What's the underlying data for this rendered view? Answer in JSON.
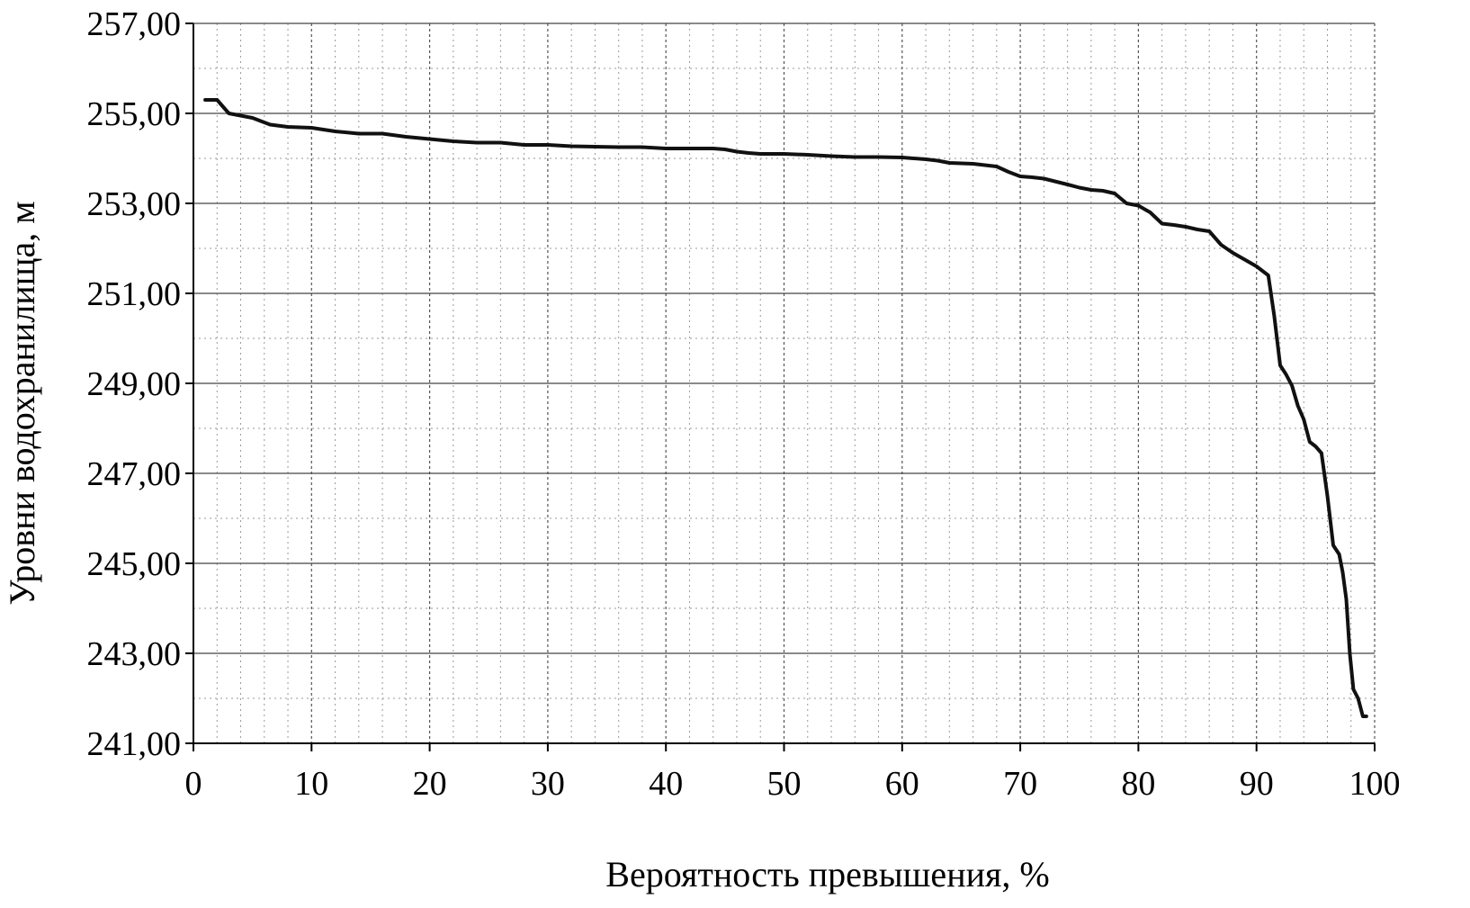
{
  "chart_data": {
    "type": "line",
    "title": "",
    "xlabel": "Вероятность превышения, %",
    "ylabel": "Уровни водохранилища, м",
    "xlim": [
      0,
      100
    ],
    "ylim": [
      241,
      257
    ],
    "x_ticks": [
      "0",
      "10",
      "20",
      "30",
      "40",
      "50",
      "60",
      "70",
      "80",
      "90",
      "100"
    ],
    "y_ticks": [
      "241,00",
      "243,00",
      "245,00",
      "247,00",
      "249,00",
      "251,00",
      "253,00",
      "255,00",
      "257,00"
    ],
    "grid": true,
    "legend": "none",
    "line_color": "#111111",
    "series": [
      {
        "x": [
          1.0,
          2.0,
          3.0,
          4.0,
          5.0,
          6.5,
          8.0,
          10.0,
          12.0,
          14.0,
          16.0,
          18.0,
          20.0,
          22.0,
          24.0,
          26.0,
          28.0,
          30.0,
          32.0,
          34.0,
          36.0,
          38.0,
          40.0,
          42.0,
          44.0,
          45.0,
          46.0,
          47.0,
          48.0,
          50.0,
          52.0,
          54.0,
          56.0,
          58.0,
          60.0,
          62.0,
          63.0,
          64.0,
          66.0,
          67.0,
          68.0,
          69.0,
          70.0,
          71.0,
          72.0,
          74.0,
          75.0,
          76.0,
          77.0,
          78.0,
          79.0,
          80.0,
          81.0,
          82.0,
          83.0,
          84.0,
          85.0,
          86.0,
          87.0,
          88.0,
          89.0,
          90.0,
          91.0,
          91.5,
          92.0,
          92.5,
          93.0,
          93.5,
          94.0,
          94.5,
          95.0,
          95.5,
          96.0,
          96.5,
          97.0,
          97.3,
          97.6,
          97.9,
          98.2,
          98.6,
          99.0,
          99.3
        ],
        "y": [
          255.3,
          255.3,
          255.0,
          254.95,
          254.9,
          254.75,
          254.7,
          254.68,
          254.6,
          254.55,
          254.55,
          254.48,
          254.43,
          254.38,
          254.35,
          254.35,
          254.3,
          254.3,
          254.27,
          254.26,
          254.25,
          254.25,
          254.22,
          254.22,
          254.22,
          254.2,
          254.15,
          254.12,
          254.1,
          254.1,
          254.08,
          254.05,
          254.03,
          254.03,
          254.02,
          253.98,
          253.95,
          253.9,
          253.88,
          253.85,
          253.82,
          253.7,
          253.6,
          253.58,
          253.55,
          253.42,
          253.35,
          253.3,
          253.28,
          253.22,
          253.0,
          252.95,
          252.8,
          252.55,
          252.52,
          252.48,
          252.42,
          252.38,
          252.08,
          251.9,
          251.75,
          251.6,
          251.4,
          250.5,
          249.4,
          249.2,
          248.95,
          248.5,
          248.2,
          247.7,
          247.6,
          247.45,
          246.5,
          245.4,
          245.2,
          244.8,
          244.2,
          243.0,
          242.2,
          242.0,
          241.6,
          241.6
        ]
      }
    ]
  }
}
